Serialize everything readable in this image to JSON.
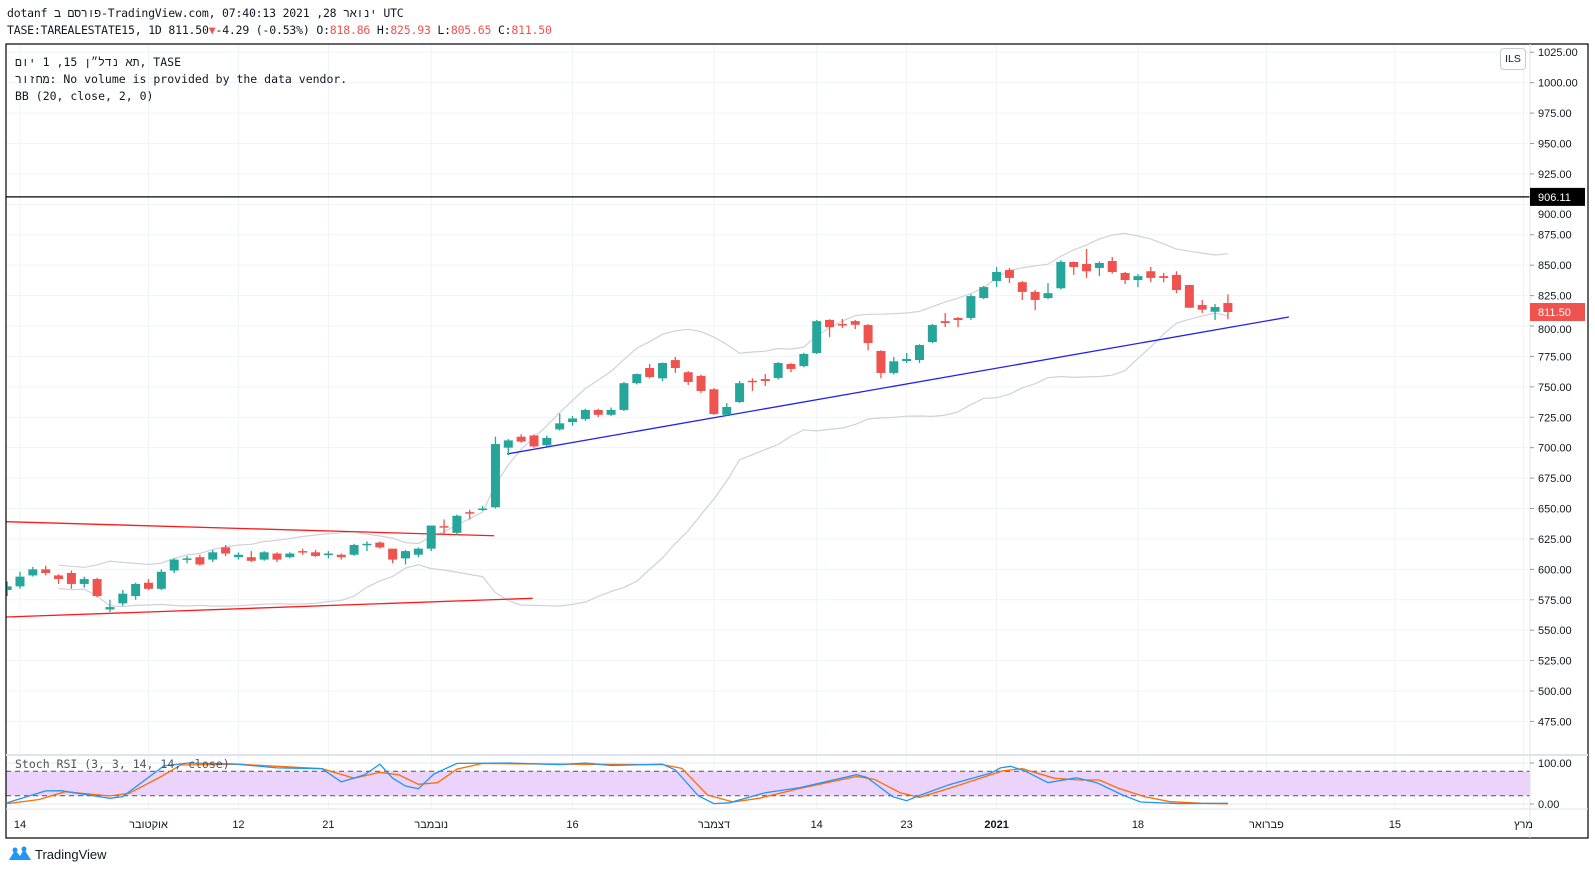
{
  "header": {
    "published": "dotanf פורסם ב-TradingView.com, ינואר 28, 2021 07:40:13 UTC",
    "symbol": "TASE:TAREALESTATE15, 1D",
    "last": "811.50",
    "change": "-4.29 (-0.53%)",
    "o_label": "O:",
    "o": "818.86",
    "h_label": "H:",
    "h": "825.93",
    "l_label": "L:",
    "l": "805.65",
    "c_label": "C:",
    "c": "811.50"
  },
  "legend": {
    "title": "תא נדל״ן 15, 1 יום, TASE",
    "volume": "מחזור: No volume is provided by the data vendor.",
    "bb": "BB (20, close, 2, 0)",
    "stoch": "Stoch RSI (3, 3, 14, 14, close)"
  },
  "currency": "ILS",
  "footer": {
    "brand": "TradingView"
  },
  "colors": {
    "up": "#26a69a",
    "down": "#ef5350",
    "bb": "#cfd2da",
    "trend_red": "#ff1a1a",
    "trend_blue": "#2222ee",
    "k": "#2196f3",
    "d": "#ff6d00",
    "stoch_fill": "#ebd3fc"
  },
  "chart_data": {
    "type": "candlestick",
    "title": "TASE:TAREALESTATE15, 1D",
    "ylabel": "ILS",
    "ylim": [
      460,
      1035
    ],
    "price_ticks": [
      475,
      500,
      525,
      550,
      575,
      600,
      625,
      650,
      675,
      700,
      725,
      750,
      775,
      800,
      825,
      850,
      875,
      900,
      925,
      950,
      975,
      1000,
      1025
    ],
    "x_ticks": [
      {
        "bar": 1,
        "label": "14",
        "bold": false
      },
      {
        "bar": 11,
        "label": "אוקטובר",
        "bold": false
      },
      {
        "bar": 18,
        "label": "12",
        "bold": false
      },
      {
        "bar": 25,
        "label": "21",
        "bold": false
      },
      {
        "bar": 33,
        "label": "נובמבר",
        "bold": false
      },
      {
        "bar": 44,
        "label": "16",
        "bold": false
      },
      {
        "bar": 55,
        "label": "דצמבר",
        "bold": false
      },
      {
        "bar": 63,
        "label": "14",
        "bold": false
      },
      {
        "bar": 70,
        "label": "23",
        "bold": false
      },
      {
        "bar": 77,
        "label": "2021",
        "bold": true
      },
      {
        "bar": 88,
        "label": "18",
        "bold": false
      },
      {
        "bar": 98,
        "label": "פברואר",
        "bold": false
      },
      {
        "bar": 108,
        "label": "15",
        "bold": false
      },
      {
        "bar": 118,
        "label": "מרץ",
        "bold": false
      }
    ],
    "ohlc": [
      [
        583,
        590,
        578,
        586
      ],
      [
        586,
        598,
        584,
        594
      ],
      [
        595,
        602,
        594,
        600
      ],
      [
        600,
        603,
        595,
        597
      ],
      [
        595,
        596,
        588,
        592
      ],
      [
        597,
        599,
        584,
        588
      ],
      [
        588,
        594,
        585,
        592
      ],
      [
        592,
        593,
        577,
        578
      ],
      [
        567,
        575,
        565,
        569
      ],
      [
        572,
        583,
        570,
        580
      ],
      [
        578,
        589,
        575,
        588
      ],
      [
        589,
        592,
        583,
        584
      ],
      [
        584,
        600,
        583,
        598
      ],
      [
        599,
        609,
        597,
        608
      ],
      [
        608,
        611,
        605,
        609
      ],
      [
        610,
        612,
        603,
        604
      ],
      [
        608,
        616,
        606,
        614
      ],
      [
        618,
        620,
        611,
        613
      ],
      [
        610,
        614,
        608,
        612
      ],
      [
        610,
        615,
        606,
        607
      ],
      [
        608,
        615,
        607,
        614
      ],
      [
        613,
        614,
        606,
        608
      ],
      [
        610,
        614,
        609,
        613
      ],
      [
        615,
        617,
        612,
        614
      ],
      [
        614,
        616,
        610,
        611
      ],
      [
        612,
        615,
        609,
        613
      ],
      [
        612,
        613,
        608,
        610
      ],
      [
        612,
        621,
        611,
        620
      ],
      [
        620,
        623,
        615,
        621
      ],
      [
        622,
        623,
        617,
        618
      ],
      [
        617,
        617,
        605,
        608
      ],
      [
        609,
        616,
        604,
        615
      ],
      [
        612,
        618,
        610,
        617
      ],
      [
        617,
        636,
        615,
        636
      ],
      [
        635.5,
        641,
        629,
        634.5
      ],
      [
        630,
        645,
        628,
        644
      ],
      [
        647,
        649,
        641,
        646
      ],
      [
        649,
        652,
        648,
        650
      ],
      [
        651,
        709,
        650,
        703
      ],
      [
        700,
        707,
        694,
        706
      ],
      [
        709,
        711,
        704,
        705
      ],
      [
        710,
        711,
        700,
        701
      ],
      [
        702,
        710,
        701,
        708
      ],
      [
        715,
        728,
        714,
        720
      ],
      [
        721,
        726,
        718,
        724
      ],
      [
        723.6,
        732,
        722,
        731
      ],
      [
        731,
        732,
        725,
        727
      ],
      [
        727,
        733,
        726,
        731
      ],
      [
        731,
        754,
        730,
        753
      ],
      [
        753,
        761,
        752,
        760.5
      ],
      [
        765.5,
        768.8,
        757,
        758
      ],
      [
        757,
        770,
        754.8,
        769.6
      ],
      [
        772,
        774.5,
        761.4,
        765.5
      ],
      [
        762,
        763,
        751.5,
        754
      ],
      [
        759,
        760,
        745,
        746.6
      ],
      [
        748,
        749,
        726.9,
        727.7
      ],
      [
        727,
        736.7,
        726,
        733.4
      ],
      [
        737.5,
        754.8,
        736.7,
        753
      ],
      [
        755,
        757,
        746.6,
        754
      ],
      [
        756.4,
        760.5,
        750.7,
        754.8
      ],
      [
        757.3,
        770.4,
        756,
        769.6
      ],
      [
        768.8,
        769.5,
        762,
        764.7
      ],
      [
        767,
        778,
        766,
        777
      ],
      [
        777.8,
        805,
        777,
        804
      ],
      [
        805,
        805.5,
        791,
        799
      ],
      [
        801.6,
        805.8,
        798.4,
        800.8
      ],
      [
        804,
        805,
        797.5,
        801
      ],
      [
        800.8,
        801.6,
        780,
        786
      ],
      [
        779.5,
        780,
        757,
        761.4
      ],
      [
        761.4,
        774.5,
        760,
        771
      ],
      [
        771.2,
        777.8,
        769.6,
        772.9
      ],
      [
        772,
        785,
        769.6,
        784.4
      ],
      [
        786.8,
        801.6,
        786,
        800.8
      ],
      [
        804,
        810.7,
        799.2,
        802.5
      ],
      [
        806.6,
        807.4,
        799,
        804.9
      ],
      [
        806.6,
        826,
        805,
        824.6
      ],
      [
        823,
        833,
        822,
        832
      ],
      [
        837,
        848.5,
        832,
        844.4
      ],
      [
        846,
        847.7,
        835.3,
        839.5
      ],
      [
        836,
        837,
        821.4,
        828
      ],
      [
        828,
        829.6,
        813,
        821.4
      ],
      [
        823,
        835.3,
        822,
        827
      ],
      [
        831,
        854.2,
        830,
        852.6
      ],
      [
        852.6,
        853,
        842,
        848.5
      ],
      [
        851,
        863.3,
        839.5,
        845
      ],
      [
        847.7,
        853,
        841,
        851.8
      ],
      [
        853.4,
        856.7,
        843,
        844.4
      ],
      [
        843.6,
        844.4,
        834.5,
        837.8
      ],
      [
        837.8,
        842.7,
        832,
        841
      ],
      [
        845,
        848.5,
        836,
        839.5
      ],
      [
        841,
        843.6,
        836,
        839.5
      ],
      [
        842,
        845,
        827,
        829.6
      ],
      [
        833.7,
        833.7,
        815,
        815
      ],
      [
        817.3,
        821.4,
        810.7,
        813.4
      ],
      [
        811.7,
        818,
        805,
        815.6
      ],
      [
        818.86,
        825.93,
        805.65,
        811.5
      ]
    ],
    "bb": {
      "length": 20,
      "mult": 2
    },
    "horizontal_line": {
      "price": 906.11,
      "label": "906.11"
    },
    "last_price_label": "811.50",
    "trendlines": [
      {
        "name": "resistance-red",
        "color": "trend_red",
        "from": [
          -0.2,
          639.2
        ],
        "to": [
          37.9,
          627.6
        ]
      },
      {
        "name": "support-red",
        "color": "trend_red",
        "from": [
          -0.1,
          560.8
        ],
        "to": [
          40.9,
          576.2
        ]
      },
      {
        "name": "support-blue",
        "color": "trend_blue",
        "from": [
          38.9,
          694.8
        ],
        "to": [
          99.75,
          807.4
        ]
      }
    ],
    "stoch_rsi": {
      "ticks": [
        {
          "value": 100,
          "label": "100.00"
        },
        {
          "value": 0,
          "label": "0.00"
        }
      ],
      "upper_band": 80,
      "lower_band": 20,
      "k": [
        [
          0,
          3
        ],
        [
          3,
          32
        ],
        [
          4.2,
          32.5
        ],
        [
          8,
          14
        ],
        [
          9,
          18
        ],
        [
          12.2,
          93
        ],
        [
          14.1,
          100
        ],
        [
          17.7,
          97.5
        ],
        [
          21,
          88
        ],
        [
          24.5,
          86
        ],
        [
          26,
          54
        ],
        [
          27.8,
          71
        ],
        [
          29,
          97
        ],
        [
          30,
          63
        ],
        [
          31,
          44
        ],
        [
          32,
          37
        ],
        [
          33.2,
          73
        ],
        [
          35,
          99
        ],
        [
          39.1,
          100
        ],
        [
          43,
          96
        ],
        [
          45,
          100
        ],
        [
          47,
          94
        ],
        [
          51,
          97
        ],
        [
          52,
          83
        ],
        [
          53.8,
          19.5
        ],
        [
          55,
          1
        ],
        [
          56.2,
          3
        ],
        [
          59,
          27.6
        ],
        [
          61.7,
          40
        ],
        [
          66.1,
          71.5
        ],
        [
          66.9,
          65
        ],
        [
          68.9,
          18
        ],
        [
          70,
          8
        ],
        [
          70.9,
          19.5
        ],
        [
          73.3,
          47
        ],
        [
          76.5,
          75
        ],
        [
          77.3,
          88
        ],
        [
          78.1,
          92
        ],
        [
          79.3,
          79
        ],
        [
          81,
          52
        ],
        [
          83.2,
          64
        ],
        [
          84.8,
          52
        ],
        [
          86.8,
          22
        ],
        [
          88.2,
          5
        ],
        [
          91.2,
          1
        ],
        [
          95,
          1.6
        ]
      ],
      "d": [
        [
          0,
          1
        ],
        [
          2.5,
          11
        ],
        [
          4.5,
          30
        ],
        [
          8,
          19.5
        ],
        [
          9.5,
          26
        ],
        [
          12,
          67
        ],
        [
          13.5,
          95
        ],
        [
          18,
          97
        ],
        [
          24.5,
          86
        ],
        [
          27,
          63
        ],
        [
          29,
          77
        ],
        [
          30.5,
          71
        ],
        [
          32,
          48
        ],
        [
          33.5,
          52
        ],
        [
          35,
          85
        ],
        [
          37,
          99
        ],
        [
          43,
          97
        ],
        [
          51,
          96
        ],
        [
          52.5,
          87
        ],
        [
          54.5,
          22
        ],
        [
          56.5,
          5
        ],
        [
          58.5,
          14
        ],
        [
          61.7,
          38
        ],
        [
          66.1,
          67
        ],
        [
          67.5,
          60
        ],
        [
          69.5,
          27.6
        ],
        [
          71,
          16
        ],
        [
          73.5,
          40
        ],
        [
          77.5,
          81
        ],
        [
          79,
          86
        ],
        [
          81.5,
          62.6
        ],
        [
          83.5,
          58.5
        ],
        [
          85,
          58.5
        ],
        [
          86.5,
          38
        ],
        [
          88.5,
          18
        ],
        [
          90.5,
          5.7
        ],
        [
          93,
          1.6
        ],
        [
          95,
          0.5
        ]
      ]
    }
  }
}
